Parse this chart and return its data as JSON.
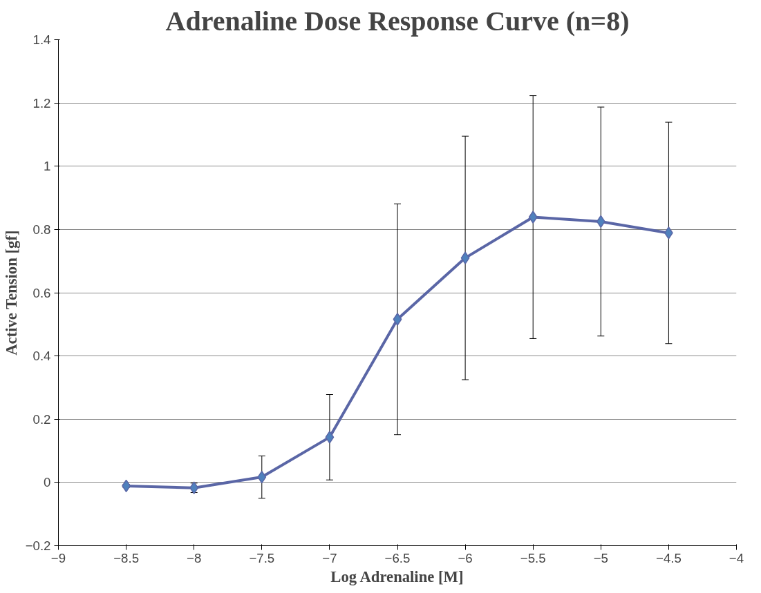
{
  "chart_data": {
    "type": "line",
    "title": "Adrenaline Dose Response Curve (n=8)",
    "xlabel": "Log Adrenaline [M]",
    "ylabel": "Active Tension [gf]",
    "x": [
      -8.5,
      -8,
      -7.5,
      -7,
      -6.5,
      -6,
      -5.5,
      -5,
      -4.5
    ],
    "series": [
      {
        "color": "#5a66a6",
        "values": [
          -0.011,
          -0.017,
          0.017,
          0.143,
          0.516,
          0.71,
          0.839,
          0.825,
          0.789
        ],
        "errors": [
          0.005,
          0.015,
          0.067,
          0.135,
          0.365,
          0.385,
          0.384,
          0.362,
          0.35
        ]
      }
    ],
    "xlim": [
      -9,
      -4
    ],
    "xticks": [
      -9,
      -8.5,
      -8,
      -7.5,
      -7,
      -6.5,
      -6,
      -5.5,
      -5,
      -4.5,
      -4
    ],
    "ylim": [
      -0.2,
      1.4
    ],
    "yticks": [
      -0.2,
      0,
      0.2,
      0.4,
      0.6,
      0.8,
      1,
      1.2,
      1.4
    ],
    "grid": "y",
    "marker": "diamond",
    "line_style": "solid"
  }
}
